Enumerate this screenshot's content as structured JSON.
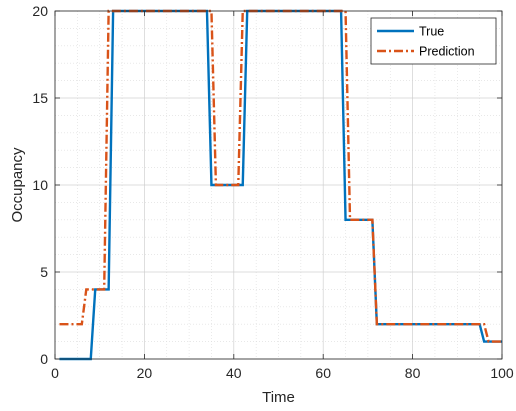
{
  "chart_data": {
    "type": "line",
    "title": "",
    "xlabel": "Time",
    "ylabel": "Occupancy",
    "xlim": [
      0,
      100
    ],
    "ylim": [
      0,
      20
    ],
    "xticks": [
      0,
      20,
      40,
      60,
      80,
      100
    ],
    "yticks": [
      0,
      5,
      10,
      15,
      20
    ],
    "grid": true,
    "minor_grid": true,
    "legend_position": "top-right",
    "series": [
      {
        "name": "True",
        "color": "#0072BD",
        "style": "solid",
        "x": [
          1,
          8,
          9,
          12,
          13,
          34,
          35,
          42,
          43,
          64,
          65,
          71,
          72,
          95,
          96,
          100
        ],
        "y": [
          0,
          0,
          4,
          4,
          20,
          20,
          10,
          10,
          20,
          20,
          8,
          8,
          2,
          2,
          1,
          1
        ]
      },
      {
        "name": "Prediction",
        "color": "#D95319",
        "style": "dashdot",
        "x": [
          1,
          6,
          7,
          11,
          12,
          35,
          36,
          41,
          42,
          65,
          66,
          71,
          72,
          96,
          97,
          100
        ],
        "y": [
          2,
          2,
          4,
          4,
          20,
          20,
          10,
          10,
          20,
          20,
          8,
          8,
          2,
          2,
          1,
          1
        ]
      }
    ]
  }
}
